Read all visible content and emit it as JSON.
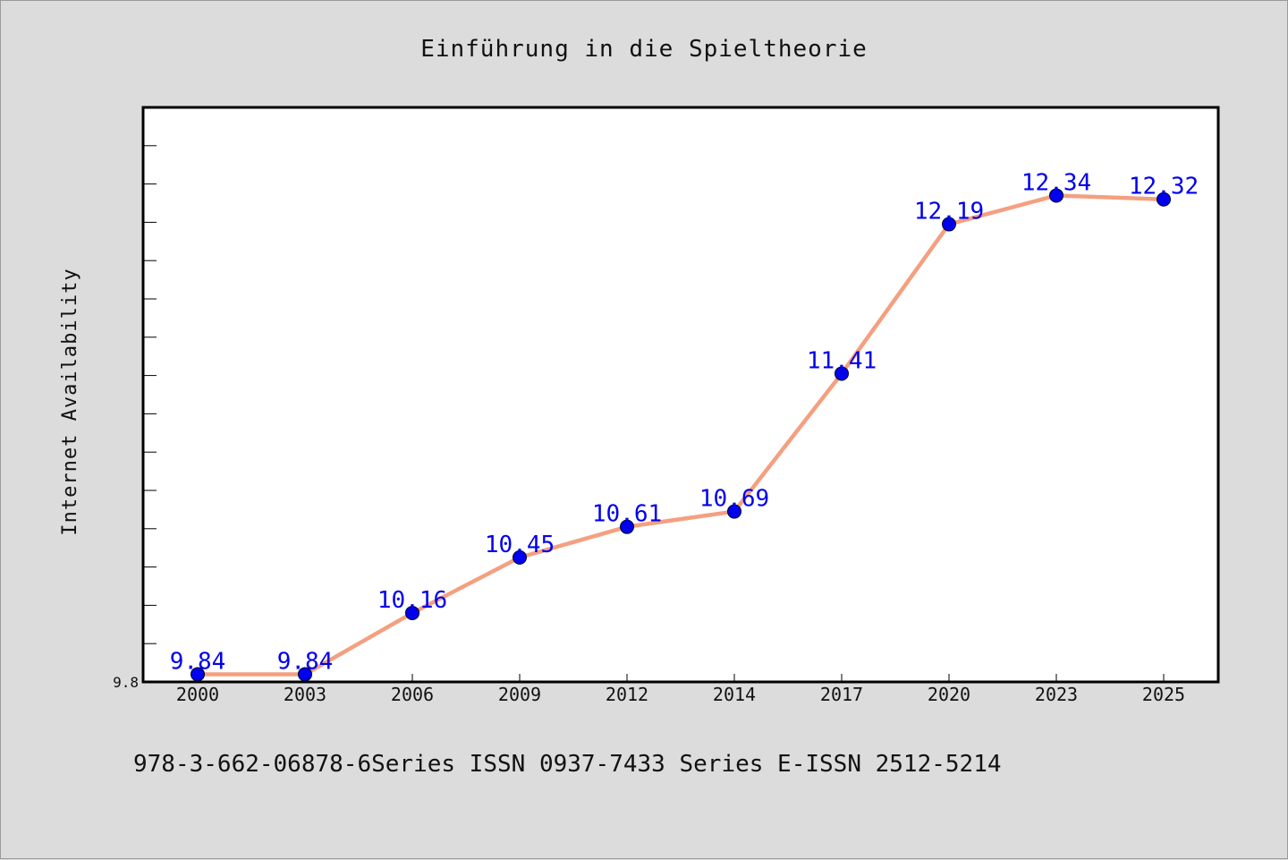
{
  "chart_data": {
    "type": "line",
    "title": "Einführung in die Spieltheorie",
    "xlabel": "",
    "ylabel": "Internet Availability",
    "categories": [
      "2000",
      "2003",
      "2006",
      "2009",
      "2012",
      "2014",
      "2017",
      "2020",
      "2023",
      "2025"
    ],
    "series": [
      {
        "values": [
          9.84,
          9.84,
          10.16,
          10.45,
          10.61,
          10.69,
          11.41,
          12.19,
          12.34,
          12.32
        ],
        "labels": [
          "9.84",
          "9.84",
          "10.16",
          "10.45",
          "10.61",
          "10.69",
          "11.41",
          "12.19",
          "12.34",
          "12.32"
        ]
      }
    ],
    "ylim": [
      9.8,
      12.8
    ],
    "ytick_labels": [
      "9.8"
    ],
    "minor_ytick_step": 0.2,
    "grid": false,
    "line_color": "#f4a080",
    "marker_color": "#0000ee",
    "label_color": "#0000ee",
    "plot_background": "#ffffff",
    "figure_background": "#dcdcdc"
  },
  "footer": "978-3-662-06878-6Series ISSN 0937-7433 Series E-ISSN 2512-5214"
}
